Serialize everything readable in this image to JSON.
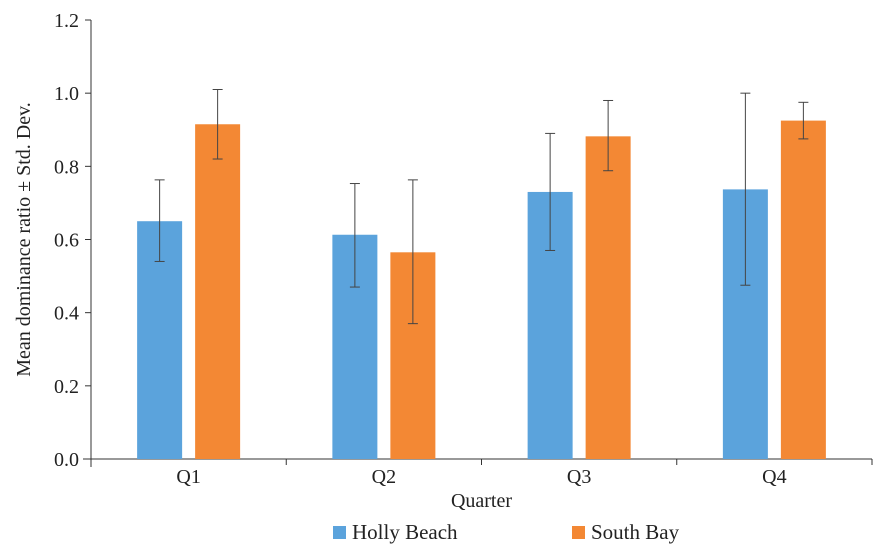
{
  "chart_data": {
    "type": "bar",
    "title": "",
    "xlabel": "Quarter",
    "ylabel": "Mean dominance ratio ± Std. Dev.",
    "ylim": [
      0,
      1.2
    ],
    "yticks": [
      "0.0",
      "0.2",
      "0.4",
      "0.6",
      "0.8",
      "1.0",
      "1.2"
    ],
    "categories": [
      "Q1",
      "Q2",
      "Q3",
      "Q4"
    ],
    "series": [
      {
        "name": "Holly Beach",
        "color": "#5ba3dc",
        "values": [
          0.65,
          0.613,
          0.73,
          0.737
        ],
        "error_low": [
          0.54,
          0.47,
          0.57,
          0.475
        ],
        "error_high": [
          0.763,
          0.753,
          0.89,
          1.0
        ]
      },
      {
        "name": "South Bay",
        "color": "#f38834",
        "values": [
          0.915,
          0.565,
          0.882,
          0.925
        ],
        "error_low": [
          0.82,
          0.37,
          0.788,
          0.875
        ],
        "error_high": [
          1.01,
          0.763,
          0.98,
          0.975
        ]
      }
    ],
    "grid": false,
    "legend": "bottom"
  }
}
